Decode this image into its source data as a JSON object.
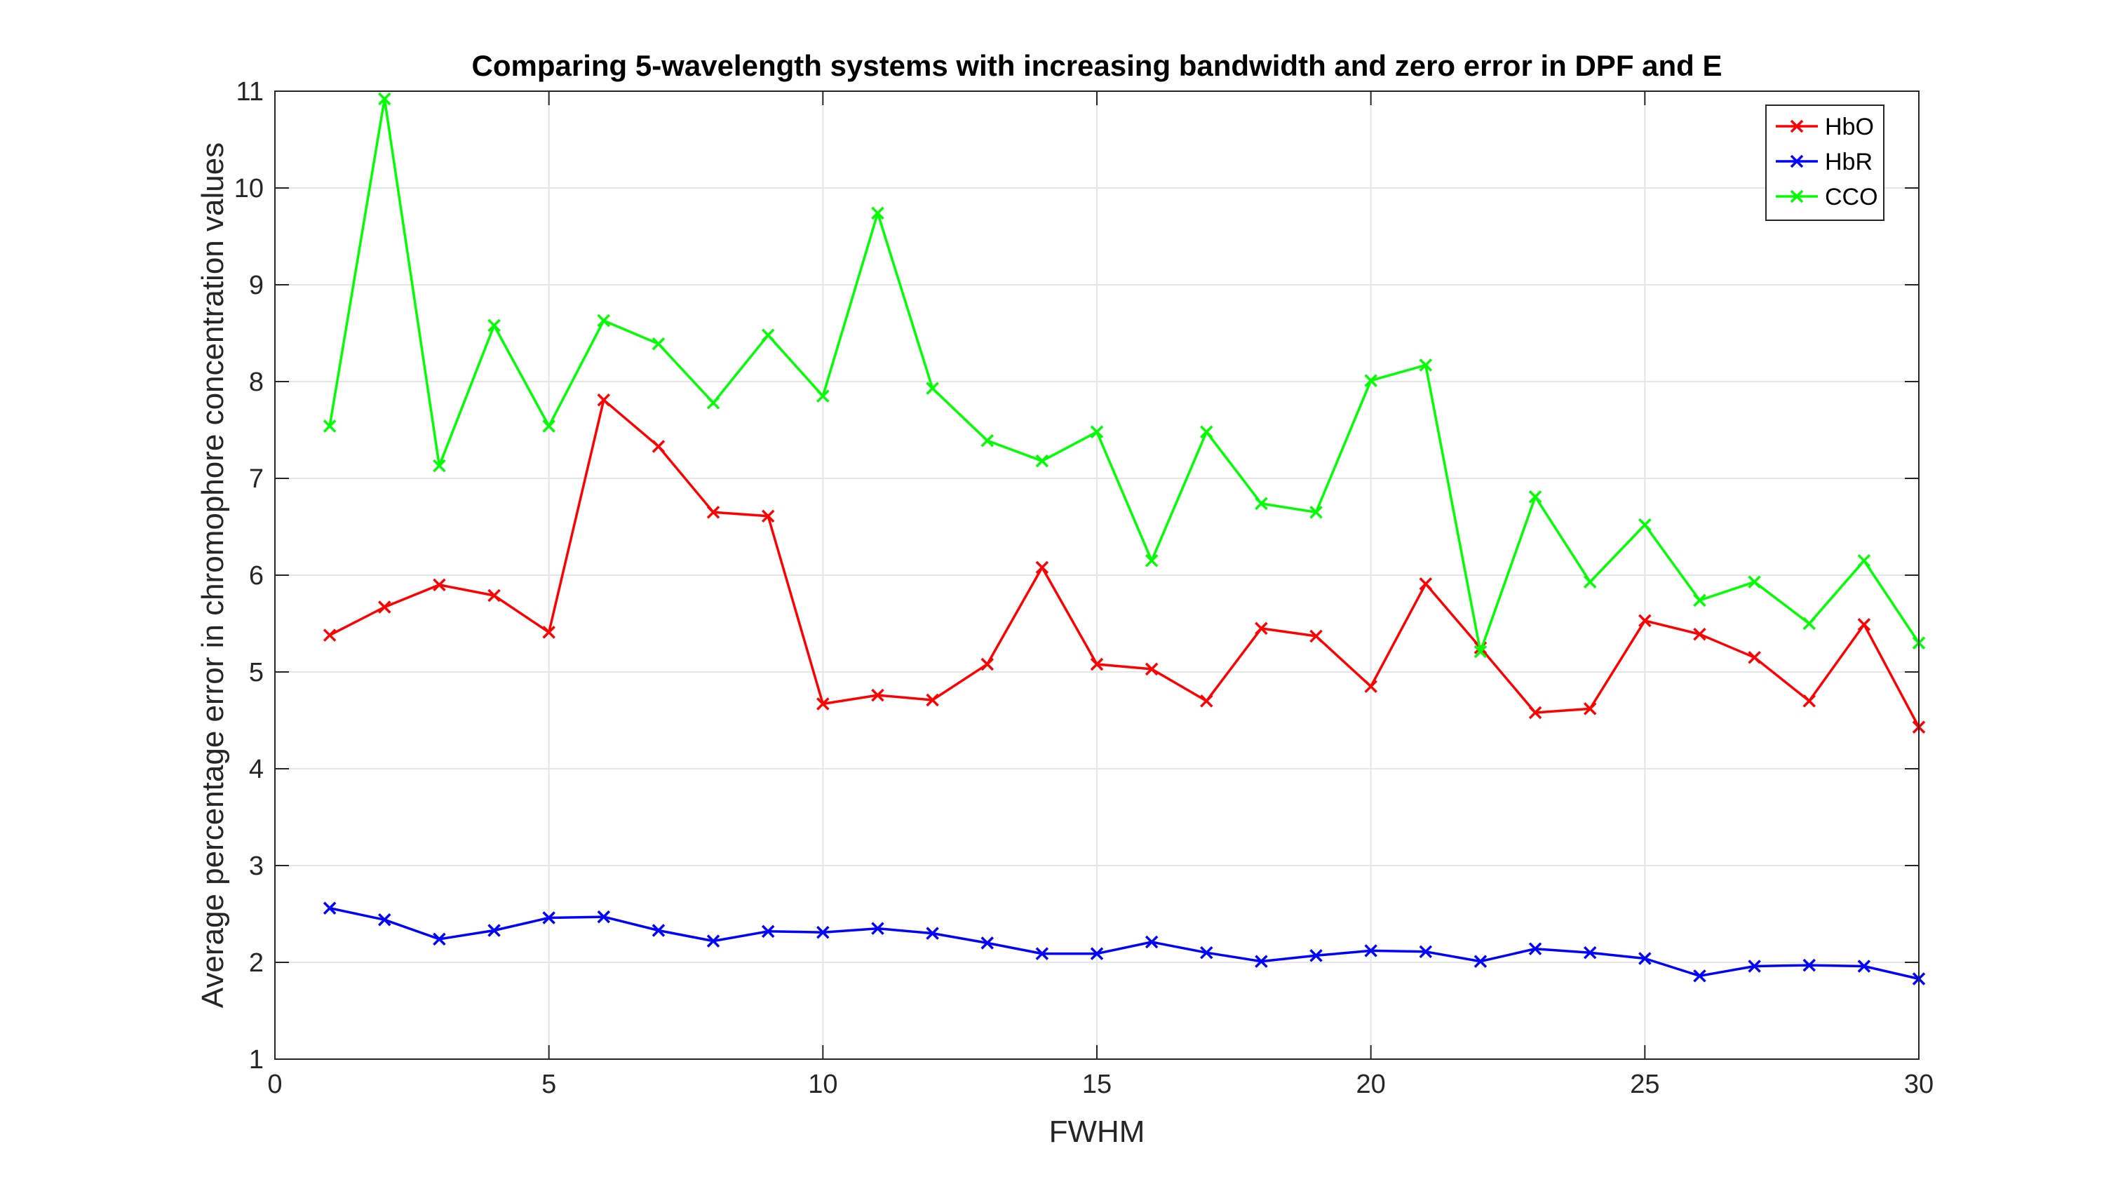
{
  "chart_data": {
    "type": "line",
    "title": "Comparing 5-wavelength systems with increasing bandwidth and zero error in DPF and E",
    "xlabel": "FWHM",
    "ylabel": "Average percentage error in chromophore concentration values",
    "xlim": [
      0,
      30
    ],
    "ylim": [
      1,
      11
    ],
    "xticks": [
      0,
      5,
      10,
      15,
      20,
      25,
      30
    ],
    "yticks": [
      1,
      2,
      3,
      4,
      5,
      6,
      7,
      8,
      9,
      10,
      11
    ],
    "grid": true,
    "legend_position": "top-right",
    "marker": "x",
    "x": [
      1,
      2,
      3,
      4,
      5,
      6,
      7,
      8,
      9,
      10,
      11,
      12,
      13,
      14,
      15,
      16,
      17,
      18,
      19,
      20,
      21,
      22,
      23,
      24,
      25,
      26,
      27,
      28,
      29,
      30
    ],
    "series": [
      {
        "name": "HbO",
        "color": "#ff0000",
        "values": [
          5.38,
          5.67,
          5.9,
          5.79,
          5.41,
          7.81,
          7.33,
          6.65,
          6.61,
          4.67,
          4.76,
          4.71,
          5.08,
          6.08,
          5.08,
          5.03,
          4.7,
          5.45,
          5.37,
          4.85,
          5.91,
          5.25,
          4.58,
          4.62,
          5.53,
          5.39,
          5.15,
          4.7,
          5.49,
          4.43
        ]
      },
      {
        "name": "HbR",
        "color": "#0000ff",
        "values": [
          2.56,
          2.44,
          2.24,
          2.33,
          2.46,
          2.47,
          2.33,
          2.22,
          2.32,
          2.31,
          2.35,
          2.3,
          2.2,
          2.09,
          2.09,
          2.21,
          2.1,
          2.01,
          2.07,
          2.12,
          2.11,
          2.01,
          2.14,
          2.1,
          2.04,
          1.86,
          1.96,
          1.97,
          1.96,
          1.83
        ]
      },
      {
        "name": "CCO",
        "color": "#00ff00",
        "values": [
          7.54,
          10.92,
          7.13,
          8.58,
          7.54,
          8.63,
          8.39,
          7.78,
          8.48,
          7.85,
          9.74,
          7.93,
          7.39,
          7.18,
          7.48,
          6.15,
          7.48,
          6.74,
          6.65,
          8.01,
          8.17,
          5.21,
          6.81,
          5.93,
          6.52,
          5.74,
          5.93,
          5.5,
          6.15,
          5.3
        ]
      }
    ]
  }
}
